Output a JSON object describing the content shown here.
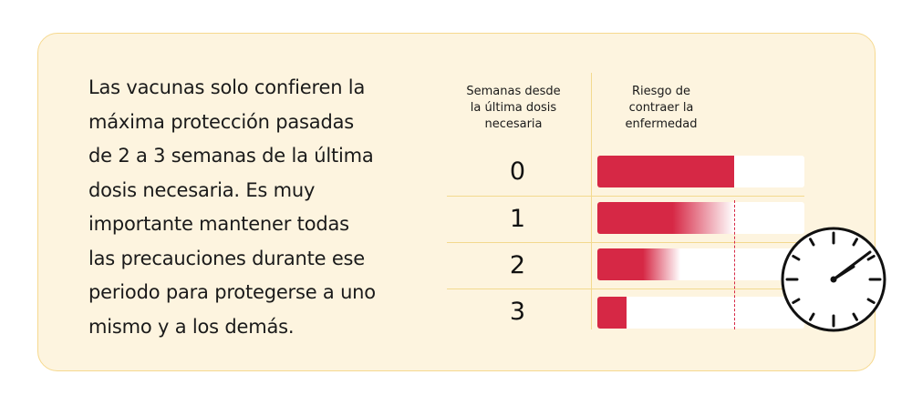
{
  "intro_lines": [
    "Las vacunas solo confieren la",
    "máxima protección pasadas",
    "de 2 a 3 semanas de la última",
    "dosis necesaria. Es muy",
    "importante mantener todas",
    "las precauciones durante ese",
    "periodo para protegerse a uno",
    "mismo y a los demás."
  ],
  "columns": {
    "weeks_header": [
      "Semanas desde",
      "la última dosis",
      "necesaria"
    ],
    "risk_header": [
      "Riesgo de",
      "contraer la",
      "enfermedad"
    ]
  },
  "rows": [
    {
      "week": "0",
      "risk_fraction": 0.66,
      "fade": false
    },
    {
      "week": "1",
      "risk_fraction": 0.66,
      "fade": true
    },
    {
      "week": "2",
      "risk_fraction": 0.4,
      "fade": true
    },
    {
      "week": "3",
      "risk_fraction": 0.14,
      "fade": false
    }
  ],
  "colors": {
    "bar": "#d62845",
    "card_bg": "#fdf4df",
    "card_border": "#f6d98f",
    "track": "#ffffff"
  },
  "icons": {
    "clock": "clock-icon"
  }
}
